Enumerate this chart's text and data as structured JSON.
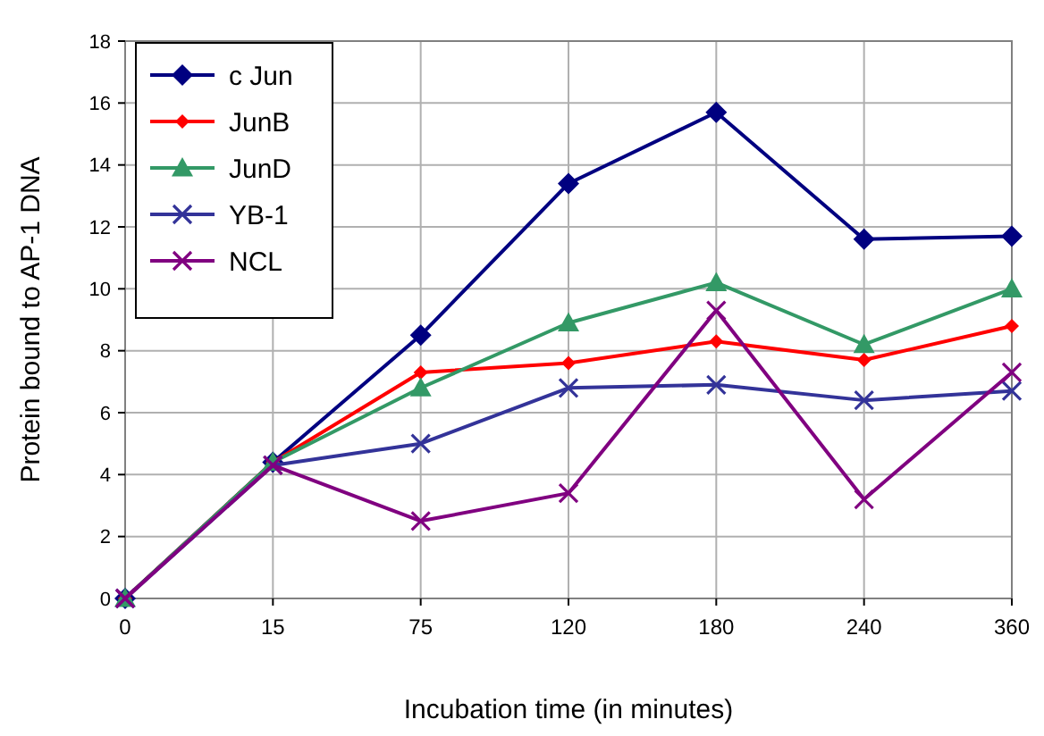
{
  "chart_data": {
    "type": "line",
    "xlabel": "Incubation time (in minutes)",
    "ylabel": "Protein bound to AP-1 DNA",
    "categories": [
      "0",
      "15",
      "75",
      "120",
      "180",
      "240",
      "360"
    ],
    "ylim": [
      0,
      18
    ],
    "yticks": [
      0,
      2,
      4,
      6,
      8,
      10,
      12,
      14,
      16,
      18
    ],
    "grid": true,
    "legend": "top left",
    "series": [
      {
        "name": "c Jun",
        "color": "#000080",
        "marker": "diamond",
        "values": [
          0,
          4.4,
          8.5,
          13.4,
          15.7,
          11.6,
          11.7
        ]
      },
      {
        "name": "JunB",
        "color": "#ff0000",
        "marker": "diamond",
        "values": [
          0,
          4.4,
          7.3,
          7.6,
          8.3,
          7.7,
          8.8
        ]
      },
      {
        "name": "JunD",
        "color": "#339966",
        "marker": "triangle",
        "values": [
          0,
          4.4,
          6.8,
          8.9,
          10.2,
          8.2,
          10.0
        ]
      },
      {
        "name": "YB-1",
        "color": "#333399",
        "marker": "cross",
        "values": [
          0,
          4.3,
          5.0,
          6.8,
          6.9,
          6.4,
          6.7
        ]
      },
      {
        "name": "NCL",
        "color": "#800080",
        "marker": "cross",
        "values": [
          0,
          4.3,
          2.5,
          3.4,
          9.3,
          3.2,
          7.3
        ]
      }
    ]
  }
}
